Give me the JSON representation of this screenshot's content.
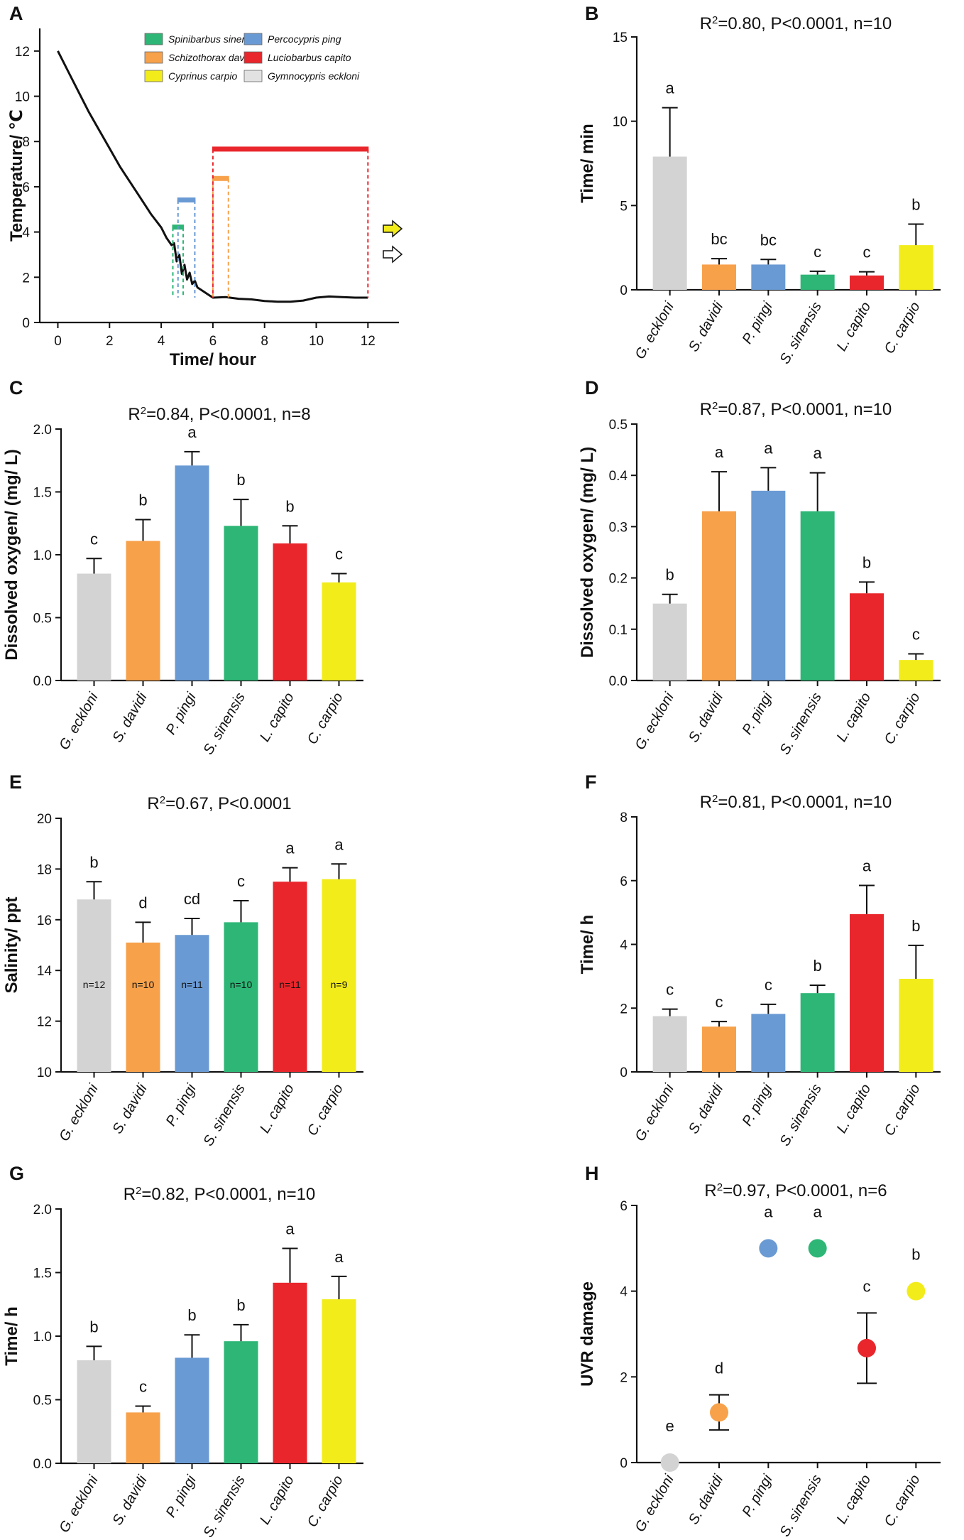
{
  "figure": {
    "colors": {
      "G. eckloni": "#d3d3d3",
      "S. davidi": "#f7a14b",
      "P. pingi": "#6a9ad3",
      "S. sinensis": "#2db676",
      "L. capito": "#e9262c",
      "C. carpio": "#f2ec1b"
    },
    "legend_arrow_colors": [
      "#f2ec1b",
      "#ffffff"
    ]
  },
  "chart_data": [
    {
      "panel": "A",
      "type": "line",
      "xlabel": "Time/ hour",
      "ylabel": "Temperature/ ℃",
      "xlim": [
        -0.7,
        13.2
      ],
      "ylim": [
        0,
        13
      ],
      "xticks": [
        0,
        2,
        4,
        6,
        8,
        10,
        12
      ],
      "yticks": [
        0,
        2,
        4,
        6,
        8,
        10,
        12
      ],
      "series": [
        {
          "name": "temperature",
          "x": [
            0,
            0.4,
            0.8,
            1.2,
            1.6,
            2,
            2.4,
            2.8,
            3.2,
            3.6,
            4,
            4.2,
            4.4,
            4.5,
            4.6,
            4.7,
            4.8,
            4.9,
            5,
            5.1,
            5.2,
            5.3,
            5.4,
            5.6,
            5.8,
            6,
            6.5,
            7,
            7.5,
            8,
            8.5,
            9,
            9.5,
            10,
            10.5,
            11,
            11.5,
            12
          ],
          "y": [
            12,
            11.1,
            10.2,
            9.3,
            8.5,
            7.7,
            6.9,
            6.2,
            5.5,
            4.8,
            4.2,
            3.75,
            3.42,
            3.5,
            2.7,
            3.0,
            2.15,
            2.55,
            1.9,
            2.2,
            1.7,
            1.85,
            1.55,
            1.4,
            1.25,
            1.1,
            1.12,
            1.05,
            1.02,
            0.95,
            0.92,
            0.92,
            0.97,
            1.1,
            1.15,
            1.12,
            1.1,
            1.1
          ]
        }
      ],
      "markers": [
        {
          "species": "Spinibarbus sinensis",
          "x1": 4.45,
          "x2": 4.85,
          "y": 4.2,
          "color": "#2db676"
        },
        {
          "species": "Percocypris ping",
          "x1": 4.65,
          "x2": 5.3,
          "y": 5.4,
          "color": "#6a9ad3"
        },
        {
          "species": "Schizothorax davidi",
          "x1": 6.0,
          "x2": 6.6,
          "y": 6.35,
          "color": "#f7a14b"
        },
        {
          "species": "Luciobarbus capito",
          "x1": 6.0,
          "x2": 12.0,
          "y": 7.65,
          "color": "#e9262c"
        }
      ],
      "legend": [
        {
          "label": "Spinibarbus sinensis",
          "color": "#2db676"
        },
        {
          "label": "Percocypris ping",
          "color": "#6a9ad3"
        },
        {
          "label": "Schizothorax davidi",
          "color": "#f7a14b"
        },
        {
          "label": "Luciobarbus capito",
          "color": "#e9262c"
        },
        {
          "label": "Cyprinus carpio",
          "color": "#f2ec1b"
        },
        {
          "label": "Gymnocypris eckloni",
          "color": "#e2e2e2"
        }
      ]
    },
    {
      "panel": "B",
      "type": "bar",
      "stat_base": "R",
      "stat_sup": "2",
      "stat_rest": "=0.80, P<0.0001, n=10",
      "ylabel": "Time/ min",
      "ylim": [
        0,
        15
      ],
      "yticks": [
        0,
        5,
        10,
        15
      ],
      "categories": [
        "G. eckloni",
        "S. davidi",
        "P. pingi",
        "S. sinensis",
        "L. capito",
        "C. carpio"
      ],
      "values": [
        7.9,
        1.5,
        1.5,
        0.9,
        0.85,
        2.65
      ],
      "errors": [
        2.9,
        0.35,
        0.3,
        0.2,
        0.22,
        1.25
      ],
      "letters": [
        "a",
        "bc",
        "bc",
        "c",
        "c",
        "b"
      ]
    },
    {
      "panel": "C",
      "type": "bar",
      "stat_base": "R",
      "stat_sup": "2",
      "stat_rest": "=0.84, P<0.0001, n=8",
      "ylabel": "Dissolved oxygen/ (mg/ L)",
      "ylim": [
        0,
        2.0
      ],
      "yticks": [
        "0.0",
        "0.5",
        "1.0",
        "1.5",
        "2.0"
      ],
      "categories": [
        "G. eckloni",
        "S. davidi",
        "P. pingi",
        "S. sinensis",
        "L. capito",
        "C. carpio"
      ],
      "values": [
        0.85,
        1.11,
        1.71,
        1.23,
        1.09,
        0.78
      ],
      "errors": [
        0.12,
        0.17,
        0.11,
        0.21,
        0.14,
        0.07
      ],
      "letters": [
        "c",
        "b",
        "a",
        "b",
        "b",
        "c"
      ]
    },
    {
      "panel": "D",
      "type": "bar",
      "stat_base": "R",
      "stat_sup": "2",
      "stat_rest": "=0.87, P<0.0001, n=10",
      "ylabel": "Dissolved oxygen/ (mg/ L)",
      "ylim": [
        0,
        0.5
      ],
      "yticks": [
        "0.0",
        "0.1",
        "0.2",
        "0.3",
        "0.4",
        "0.5"
      ],
      "categories": [
        "G. eckloni",
        "S. davidi",
        "P. pingi",
        "S. sinensis",
        "L. capito",
        "C. carpio"
      ],
      "values": [
        0.15,
        0.33,
        0.37,
        0.33,
        0.17,
        0.04
      ],
      "errors": [
        0.018,
        0.077,
        0.045,
        0.075,
        0.022,
        0.012
      ],
      "letters": [
        "b",
        "a",
        "a",
        "a",
        "b",
        "c"
      ]
    },
    {
      "panel": "E",
      "type": "bar",
      "stat_base": "R",
      "stat_sup": "2",
      "stat_rest": "=0.67, P<0.0001",
      "ylabel": "Salinity/ ppt",
      "ylim": [
        10,
        20
      ],
      "yticks": [
        10,
        12,
        14,
        16,
        18,
        20
      ],
      "categories": [
        "G. eckloni",
        "S. davidi",
        "P. pingi",
        "S. sinensis",
        "L. capito",
        "C. carpio"
      ],
      "values": [
        16.8,
        15.1,
        15.4,
        15.9,
        17.5,
        17.6
      ],
      "errors": [
        0.7,
        0.8,
        0.65,
        0.85,
        0.55,
        0.6
      ],
      "letters": [
        "b",
        "d",
        "cd",
        "c",
        "a",
        "a"
      ],
      "inbar": [
        "n=12",
        "n=10",
        "n=11",
        "n=10",
        "n=11",
        "n=9"
      ]
    },
    {
      "panel": "F",
      "type": "bar",
      "stat_base": "R",
      "stat_sup": "2",
      "stat_rest": "=0.81, P<0.0001, n=10",
      "ylabel": "Time/ h",
      "ylim": [
        0,
        8
      ],
      "yticks": [
        0,
        2,
        4,
        6,
        8
      ],
      "categories": [
        "G. eckloni",
        "S. davidi",
        "P. pingi",
        "S. sinensis",
        "L. capito",
        "C. carpio"
      ],
      "values": [
        1.75,
        1.42,
        1.82,
        2.47,
        4.95,
        2.92
      ],
      "errors": [
        0.22,
        0.16,
        0.3,
        0.25,
        0.9,
        1.05
      ],
      "letters": [
        "c",
        "c",
        "c",
        "b",
        "a",
        "b"
      ]
    },
    {
      "panel": "G",
      "type": "bar",
      "stat_base": "R",
      "stat_sup": "2",
      "stat_rest": "=0.82, P<0.0001, n=10",
      "ylabel": "Time/ h",
      "ylim": [
        0,
        2.0
      ],
      "yticks": [
        "0.0",
        "0.5",
        "1.0",
        "1.5",
        "2.0"
      ],
      "categories": [
        "G. eckloni",
        "S. davidi",
        "P. pingi",
        "S. sinensis",
        "L. capito",
        "C. carpio"
      ],
      "values": [
        0.81,
        0.4,
        0.83,
        0.96,
        1.42,
        1.29
      ],
      "errors": [
        0.11,
        0.05,
        0.18,
        0.13,
        0.27,
        0.18
      ],
      "letters": [
        "b",
        "c",
        "b",
        "b",
        "a",
        "a"
      ]
    },
    {
      "panel": "H",
      "type": "scatter",
      "stat_base": "R",
      "stat_sup": "2",
      "stat_rest": "=0.97, P<0.0001, n=6",
      "ylabel": "UVR damage",
      "ylim": [
        0,
        6
      ],
      "yticks": [
        0,
        2,
        4,
        6
      ],
      "categories": [
        "G. eckloni",
        "S. davidi",
        "P. pingi",
        "S. sinensis",
        "L. capito",
        "C. carpio"
      ],
      "values": [
        0,
        1.17,
        5.0,
        5.0,
        2.67,
        4.0
      ],
      "errors": [
        0,
        0.41,
        0,
        0,
        0.82,
        0
      ],
      "letters": [
        "e",
        "d",
        "a",
        "a",
        "c",
        "b"
      ]
    }
  ]
}
